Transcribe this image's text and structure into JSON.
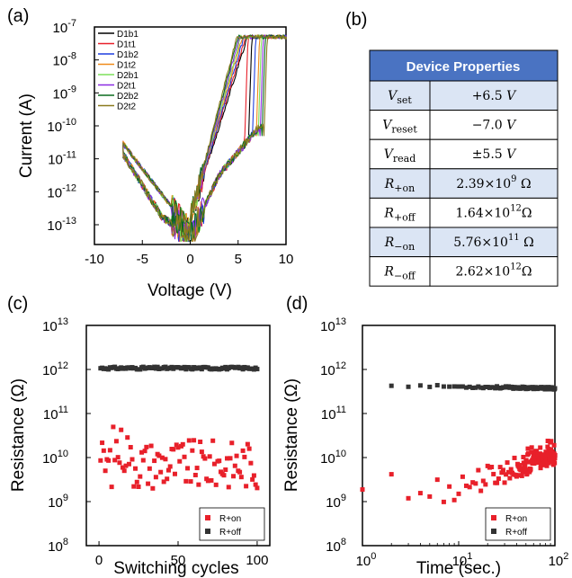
{
  "panels": {
    "a": "(a)",
    "b": "(b)",
    "c": "(c)",
    "d": "(d)"
  },
  "chart_data": [
    {
      "id": "a",
      "type": "line",
      "xlabel": "Voltage (V)",
      "ylabel": "Current (A)",
      "xlim": [
        -10,
        10
      ],
      "ylim_log10": [
        -13.6,
        -7
      ],
      "y_scale": "log",
      "x_ticks": [
        "-10",
        "-5",
        "0",
        "5",
        "10"
      ],
      "y_ticks": [
        {
          "base": "10",
          "exp": "-7"
        },
        {
          "base": "10",
          "exp": "-8"
        },
        {
          "base": "10",
          "exp": "-9"
        },
        {
          "base": "10",
          "exp": "-10"
        },
        {
          "base": "10",
          "exp": "-11"
        },
        {
          "base": "10",
          "exp": "-12"
        },
        {
          "base": "10",
          "exp": "-13"
        }
      ],
      "legend_position": "top-left",
      "series": [
        {
          "name": "D1b1",
          "color": "#000000",
          "set_voltage": 6.0,
          "reset_voltage": -7.0
        },
        {
          "name": "D1t1",
          "color": "#e8202a",
          "set_voltage": 5.6,
          "reset_voltage": -7.0
        },
        {
          "name": "D1b2",
          "color": "#1f3fe0",
          "set_voltage": 6.4,
          "reset_voltage": -7.0
        },
        {
          "name": "D1t2",
          "color": "#f08a1a",
          "set_voltage": 6.8,
          "reset_voltage": -7.0
        },
        {
          "name": "D2b1",
          "color": "#7de05a",
          "set_voltage": 7.0,
          "reset_voltage": -7.0
        },
        {
          "name": "D2t1",
          "color": "#8a2be2",
          "set_voltage": 7.2,
          "reset_voltage": -7.0
        },
        {
          "name": "D2b2",
          "color": "#0b6b1f",
          "set_voltage": 7.4,
          "reset_voltage": -7.0
        },
        {
          "name": "D2t2",
          "color": "#8a7a1e",
          "set_voltage": 7.6,
          "reset_voltage": -7.0
        }
      ],
      "compliance_current": 5e-08
    },
    {
      "id": "c",
      "type": "scatter",
      "xlabel": "Switching cycles",
      "ylabel": "Resistance (Ω)",
      "xlim": [
        -8,
        108
      ],
      "ylim_log10": [
        8,
        13
      ],
      "x_ticks": [
        "0",
        "50",
        "100"
      ],
      "y_ticks": [
        {
          "base": "10",
          "exp": "8"
        },
        {
          "base": "10",
          "exp": "9"
        },
        {
          "base": "10",
          "exp": "10"
        },
        {
          "base": "10",
          "exp": "11"
        },
        {
          "base": "10",
          "exp": "12"
        },
        {
          "base": "10",
          "exp": "13"
        }
      ],
      "legend_position": "bottom-right",
      "series": [
        {
          "name": "R+on",
          "color": "#e8202a",
          "cycles": 100,
          "log10_mean": 9.85,
          "log10_min": 9.3,
          "log10_max": 10.7
        },
        {
          "name": "R+off",
          "color": "#333333",
          "cycles": 100,
          "log10_mean": 12.03,
          "log10_min": 11.98,
          "log10_max": 12.1
        }
      ]
    },
    {
      "id": "d",
      "type": "scatter",
      "xlabel": "Time (sec.)",
      "ylabel": "Resistance (Ω)",
      "x_scale": "log",
      "xlim_log10": [
        0,
        2
      ],
      "ylim_log10": [
        8,
        13
      ],
      "x_ticks": [
        {
          "base": "10",
          "exp": "0"
        },
        {
          "base": "10",
          "exp": "1"
        },
        {
          "base": "10",
          "exp": "2"
        }
      ],
      "y_ticks": [
        {
          "base": "10",
          "exp": "8"
        },
        {
          "base": "10",
          "exp": "9"
        },
        {
          "base": "10",
          "exp": "10"
        },
        {
          "base": "10",
          "exp": "11"
        },
        {
          "base": "10",
          "exp": "12"
        },
        {
          "base": "10",
          "exp": "13"
        }
      ],
      "legend_position": "bottom-right",
      "series": [
        {
          "name": "R+on",
          "color": "#e8202a",
          "time_start": 1,
          "time_end": 100,
          "log10_start": 9.0,
          "log10_end": 10.1
        },
        {
          "name": "R+off",
          "color": "#333333",
          "time_start": 1,
          "time_end": 100,
          "log10_start": 11.65,
          "log10_end": 11.57
        }
      ]
    }
  ],
  "table": {
    "header": "Device Properties",
    "header_color": "#4a73c2",
    "shade_color": "#dbe5f4",
    "rows": [
      {
        "label": "V",
        "sub": "set",
        "value": "+6.5 V",
        "shaded": true
      },
      {
        "label": "V",
        "sub": "reset",
        "value": "−7.0 V",
        "shaded": false
      },
      {
        "label": "V",
        "sub": "read",
        "value": "±5.5 V",
        "shaded": false
      },
      {
        "label": "R",
        "sub": "+on",
        "value_mant": "2.39×10",
        "value_exp": "9",
        "value_unit": " Ω",
        "shaded": true
      },
      {
        "label": "R",
        "sub": "+off",
        "value_mant": "1.64×10",
        "value_exp": "12",
        "value_unit": "Ω",
        "shaded": false
      },
      {
        "label": "R",
        "sub": "−on",
        "value_mant": "5.76×10",
        "value_exp": "11",
        "value_unit": " Ω",
        "shaded": true
      },
      {
        "label": "R",
        "sub": "−off",
        "value_mant": "2.62×10",
        "value_exp": "12",
        "value_unit": "Ω",
        "shaded": false
      }
    ]
  }
}
